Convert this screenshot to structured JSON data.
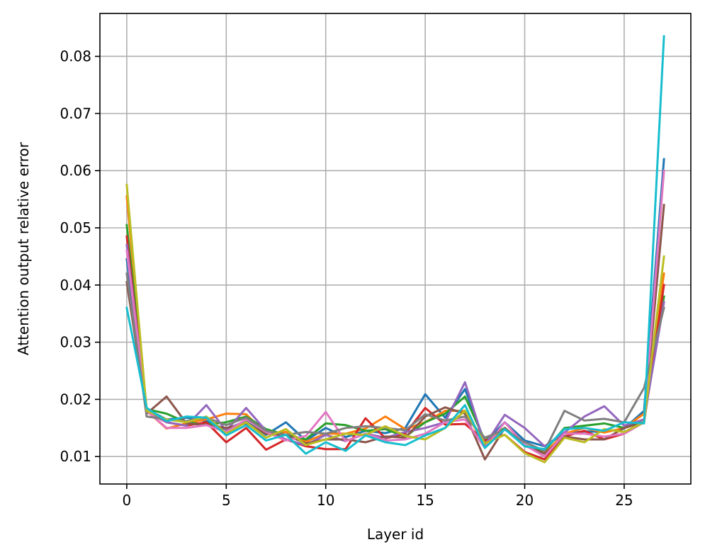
{
  "chart_data": {
    "type": "line",
    "title": "",
    "xlabel": "Layer id",
    "ylabel": "Attention output relative error",
    "xlim": [
      -1.35,
      28.35
    ],
    "ylim": [
      0.0052,
      0.0875
    ],
    "xticks": [
      0,
      5,
      10,
      15,
      20,
      25
    ],
    "xtick_labels": [
      "0",
      "5",
      "10",
      "15",
      "20",
      "25"
    ],
    "yticks": [
      0.01,
      0.02,
      0.03,
      0.04,
      0.05,
      0.06,
      0.07,
      0.08
    ],
    "ytick_labels": [
      "0.01",
      "0.02",
      "0.03",
      "0.04",
      "0.05",
      "0.06",
      "0.07",
      "0.08"
    ],
    "grid": true,
    "x": [
      0,
      1,
      2,
      3,
      4,
      5,
      6,
      7,
      8,
      9,
      10,
      11,
      12,
      13,
      14,
      15,
      16,
      17,
      18,
      19,
      20,
      21,
      22,
      23,
      24,
      25,
      26,
      27
    ],
    "series": [
      {
        "color": "#1f77b4",
        "values": [
          0.0445,
          0.0183,
          0.0165,
          0.0168,
          0.0162,
          0.0147,
          0.0163,
          0.0138,
          0.016,
          0.0128,
          0.015,
          0.0134,
          0.0145,
          0.0141,
          0.015,
          0.0209,
          0.0168,
          0.0218,
          0.0125,
          0.016,
          0.0128,
          0.0118,
          0.014,
          0.0144,
          0.0143,
          0.0149,
          0.018,
          0.062
        ]
      },
      {
        "color": "#ff7f0e",
        "values": [
          0.0555,
          0.018,
          0.0149,
          0.0158,
          0.0165,
          0.0175,
          0.0174,
          0.014,
          0.0143,
          0.0126,
          0.014,
          0.014,
          0.0149,
          0.017,
          0.0148,
          0.016,
          0.018,
          0.018,
          0.012,
          0.015,
          0.012,
          0.0106,
          0.014,
          0.015,
          0.0142,
          0.015,
          0.0175,
          0.042
        ]
      },
      {
        "color": "#2ca02c",
        "values": [
          0.0505,
          0.0183,
          0.0175,
          0.016,
          0.0156,
          0.016,
          0.017,
          0.0148,
          0.0138,
          0.013,
          0.0158,
          0.0155,
          0.0145,
          0.0148,
          0.0135,
          0.016,
          0.0175,
          0.0205,
          0.0128,
          0.015,
          0.0118,
          0.011,
          0.015,
          0.0154,
          0.0158,
          0.015,
          0.0165,
          0.038
        ]
      },
      {
        "color": "#d62728",
        "values": [
          0.0485,
          0.0178,
          0.016,
          0.0154,
          0.016,
          0.0125,
          0.015,
          0.0112,
          0.013,
          0.0118,
          0.0113,
          0.0113,
          0.0167,
          0.0132,
          0.014,
          0.0185,
          0.0156,
          0.0157,
          0.0128,
          0.0138,
          0.0108,
          0.0095,
          0.0135,
          0.0145,
          0.013,
          0.014,
          0.016,
          0.04
        ]
      },
      {
        "color": "#9467bd",
        "values": [
          0.047,
          0.018,
          0.016,
          0.0154,
          0.019,
          0.0145,
          0.0185,
          0.0145,
          0.013,
          0.012,
          0.0138,
          0.0127,
          0.014,
          0.0133,
          0.0143,
          0.015,
          0.016,
          0.023,
          0.012,
          0.0173,
          0.015,
          0.0118,
          0.0142,
          0.017,
          0.0188,
          0.0154,
          0.0165,
          0.037
        ]
      },
      {
        "color": "#8c564b",
        "values": [
          0.0405,
          0.0175,
          0.0205,
          0.0158,
          0.0155,
          0.015,
          0.0158,
          0.014,
          0.0138,
          0.0123,
          0.013,
          0.013,
          0.0125,
          0.0135,
          0.0133,
          0.017,
          0.0186,
          0.0175,
          0.0095,
          0.015,
          0.012,
          0.0105,
          0.0135,
          0.013,
          0.013,
          0.015,
          0.016,
          0.054
        ]
      },
      {
        "color": "#e377c2",
        "values": [
          0.046,
          0.018,
          0.015,
          0.015,
          0.0155,
          0.0143,
          0.0165,
          0.0143,
          0.0128,
          0.0136,
          0.0178,
          0.0127,
          0.014,
          0.0128,
          0.013,
          0.014,
          0.016,
          0.0165,
          0.0115,
          0.016,
          0.012,
          0.01,
          0.014,
          0.014,
          0.0135,
          0.014,
          0.016,
          0.06
        ]
      },
      {
        "color": "#7f7f7f",
        "values": [
          0.042,
          0.017,
          0.0165,
          0.0162,
          0.0168,
          0.0155,
          0.0168,
          0.0145,
          0.0138,
          0.0143,
          0.014,
          0.015,
          0.0153,
          0.015,
          0.0146,
          0.0174,
          0.0163,
          0.017,
          0.0133,
          0.0147,
          0.0125,
          0.011,
          0.018,
          0.0163,
          0.0166,
          0.016,
          0.022,
          0.036
        ]
      },
      {
        "color": "#bcbd22",
        "values": [
          0.0575,
          0.018,
          0.0165,
          0.016,
          0.017,
          0.014,
          0.016,
          0.0133,
          0.0148,
          0.012,
          0.013,
          0.014,
          0.0138,
          0.0153,
          0.0136,
          0.013,
          0.015,
          0.018,
          0.0123,
          0.0138,
          0.0106,
          0.009,
          0.0133,
          0.0125,
          0.0148,
          0.0143,
          0.016,
          0.045
        ]
      },
      {
        "color": "#17becf",
        "values": [
          0.036,
          0.0185,
          0.0162,
          0.017,
          0.0168,
          0.0137,
          0.0155,
          0.0128,
          0.0138,
          0.0105,
          0.0125,
          0.011,
          0.0137,
          0.0125,
          0.012,
          0.0137,
          0.015,
          0.019,
          0.0115,
          0.0148,
          0.0118,
          0.0113,
          0.0148,
          0.015,
          0.0145,
          0.016,
          0.0158,
          0.0835
        ]
      }
    ]
  }
}
